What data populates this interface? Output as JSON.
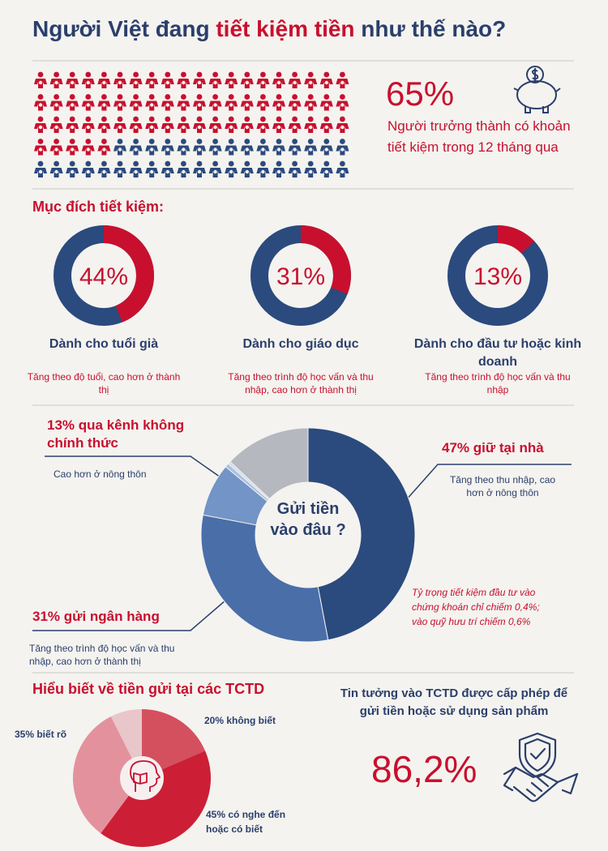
{
  "title": [
    "Người Việt đang ",
    "tiết kiệm tiền",
    " như thế nào?"
  ],
  "chart_data": [
    {
      "type": "waffle",
      "values": [
        65
      ],
      "value_labels": [
        "65%"
      ],
      "color": "#c8102e",
      "other_color": "#2b4a7e",
      "caption": "Người trưởng thành có khoản tiết kiệm trong 12 tháng qua"
    },
    {
      "type": "donut",
      "title": "Mục đích tiết kiệm:",
      "categories": [
        "Dành cho tuổi già",
        "Dành cho giáo dục",
        "Dành cho đầu tư hoặc kinh doanh"
      ],
      "values": [
        44,
        31,
        13
      ],
      "value_labels": [
        "44%",
        "31%",
        "13%"
      ],
      "notes": [
        "Tăng theo độ tuổi, cao hơn ở thành thị",
        "Tăng theo trình độ học vấn và thu nhập, cao hơn ở thành thị",
        "Tăng theo trình độ học vấn và thu nhập"
      ],
      "color": "#c8102e",
      "track_color": "#2b4a7e"
    },
    {
      "type": "pie",
      "center_label": "Gửi tiền vào đâu ?",
      "categories": [
        "47% giữ tại nhà",
        "31% gửi ngân hàng",
        null,
        null,
        null,
        "13% qua kênh không chính thức"
      ],
      "values": [
        47,
        31,
        8,
        0.6,
        0.4,
        13
      ],
      "colors": [
        "#2b4a7e",
        "#4a6ea8",
        "#7394c6",
        "#a9c0e0",
        "#d0dbee",
        "#b5b8bf"
      ],
      "notes": [
        "Tăng theo thu nhập, cao hơn ở nông thôn",
        "Tăng theo trình độ học vấn và thu nhập, cao hơn ở thành thị",
        null,
        null,
        null,
        "Cao hơn ở nông thôn"
      ],
      "annotation": "Tỷ trọng tiết kiệm đầu tư vào chứng khoán chỉ chiếm 0,4%; vào quỹ hưu trí chiếm 0,6%"
    },
    {
      "type": "pie",
      "title": "Hiểu biết về tiền gửi tại các TCTD",
      "categories": [
        "20% không biết",
        "45% có nghe đến hoặc có biết",
        "35% biết rõ",
        null
      ],
      "values": [
        20,
        45,
        35,
        8
      ],
      "colors": [
        "#d4505f",
        "#cc1f36",
        "#e3929d",
        "#e8c6ca"
      ]
    }
  ],
  "trust": {
    "text": "Tin tưởng vào TCTD được cấp phép để gửi tiền hoặc sử dụng sản phẩm",
    "value": "86,2%"
  }
}
